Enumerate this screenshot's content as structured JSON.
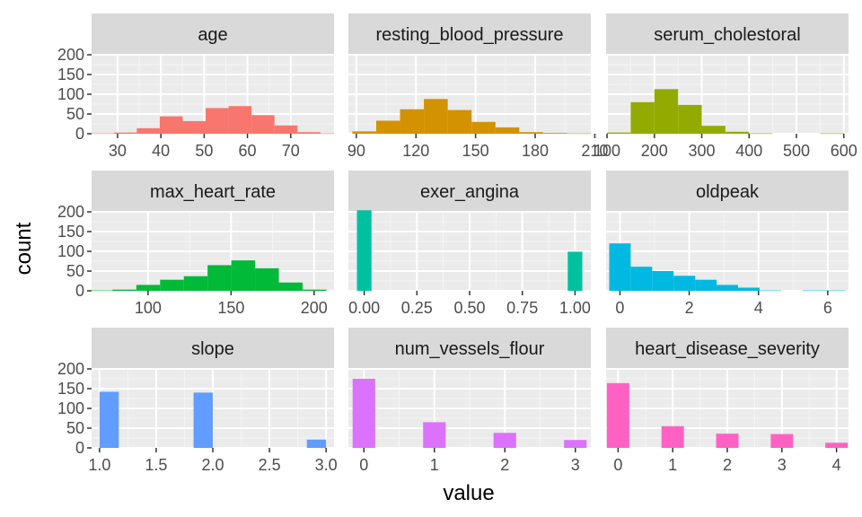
{
  "chart_data": {
    "type": "bar",
    "xlabel": "value",
    "ylabel": "count",
    "ylim": [
      0,
      200
    ],
    "y_ticks": [
      0,
      50,
      100,
      150,
      200
    ],
    "grid": true,
    "panels": [
      {
        "name": "age",
        "color": "#F8766D",
        "xlim": [
          24,
          80
        ],
        "x_ticks": [
          30,
          40,
          50,
          60,
          70
        ],
        "bar_width": 5.3,
        "bars": [
          [
            26.5,
            1
          ],
          [
            31.8,
            3
          ],
          [
            37.1,
            14
          ],
          [
            42.4,
            44
          ],
          [
            47.7,
            32
          ],
          [
            53.0,
            65
          ],
          [
            58.3,
            70
          ],
          [
            63.6,
            47
          ],
          [
            68.9,
            21
          ],
          [
            74.2,
            4
          ],
          [
            79.5,
            1
          ]
        ]
      },
      {
        "name": "resting_blood_pressure",
        "color": "#D39200",
        "xlim": [
          86,
          208
        ],
        "x_ticks": [
          90,
          120,
          150,
          180,
          210
        ],
        "bar_width": 12,
        "bars": [
          [
            94,
            6
          ],
          [
            106,
            33
          ],
          [
            118,
            62
          ],
          [
            130,
            88
          ],
          [
            142,
            60
          ],
          [
            154,
            30
          ],
          [
            166,
            16
          ],
          [
            178,
            4
          ],
          [
            190,
            2
          ],
          [
            202,
            1
          ]
        ]
      },
      {
        "name": "serum_cholestoral",
        "color": "#93AA00",
        "xlim": [
          98,
          610
        ],
        "x_ticks": [
          100,
          200,
          300,
          400,
          500,
          600
        ],
        "bar_width": 50,
        "bars": [
          [
            125,
            3
          ],
          [
            175,
            80
          ],
          [
            225,
            113
          ],
          [
            275,
            73
          ],
          [
            325,
            20
          ],
          [
            375,
            5
          ],
          [
            425,
            1
          ],
          [
            475,
            0
          ],
          [
            525,
            0
          ],
          [
            575,
            1
          ]
        ]
      },
      {
        "name": "max_heart_rate",
        "color": "#00BA38",
        "xlim": [
          66,
          212
        ],
        "x_ticks": [
          100,
          150,
          200
        ],
        "bar_width": 14.3,
        "bars": [
          [
            71.5,
            1
          ],
          [
            85.8,
            3
          ],
          [
            100.1,
            15
          ],
          [
            114.4,
            28
          ],
          [
            128.7,
            37
          ],
          [
            143.0,
            65
          ],
          [
            157.3,
            77
          ],
          [
            171.6,
            57
          ],
          [
            185.9,
            21
          ],
          [
            200.2,
            3
          ]
        ]
      },
      {
        "name": "exer_angina",
        "color": "#00C19F",
        "xlim": [
          -0.075,
          1.075
        ],
        "x_ticks": [
          0.0,
          0.25,
          0.5,
          0.75,
          1.0
        ],
        "x_tick_labels": [
          "0.00",
          "0.25",
          "0.50",
          "0.75",
          "1.00"
        ],
        "bar_width": 0.069,
        "bars": [
          [
            0,
            204
          ],
          [
            1,
            99
          ]
        ]
      },
      {
        "name": "oldpeak",
        "color": "#00B9E3",
        "xlim": [
          -0.4,
          6.6
        ],
        "x_ticks": [
          0,
          2,
          4,
          6
        ],
        "bar_width": 0.62,
        "bars": [
          [
            0,
            120
          ],
          [
            0.62,
            61
          ],
          [
            1.24,
            50
          ],
          [
            1.86,
            38
          ],
          [
            2.48,
            28
          ],
          [
            3.1,
            15
          ],
          [
            3.72,
            8
          ],
          [
            4.34,
            1
          ],
          [
            4.96,
            0
          ],
          [
            5.58,
            1
          ],
          [
            6.2,
            1
          ]
        ]
      },
      {
        "name": "slope",
        "color": "#619CFF",
        "xlim": [
          0.93,
          3.07
        ],
        "x_ticks": [
          1.0,
          1.5,
          2.0,
          2.5,
          3.0
        ],
        "x_tick_labels": [
          "1.0",
          "1.5",
          "2.0",
          "2.5",
          "3.0"
        ],
        "bar_width": 0.17,
        "bars": [
          [
            1.085,
            142
          ],
          [
            1.915,
            140
          ],
          [
            2.915,
            21
          ]
        ]
      },
      {
        "name": "num_vessels_flour",
        "color": "#DB72FB",
        "xlim": [
          -0.22,
          3.22
        ],
        "x_ticks": [
          0,
          1,
          2,
          3
        ],
        "bar_width": 0.32,
        "bars": [
          [
            0,
            175
          ],
          [
            1,
            65
          ],
          [
            2,
            38
          ],
          [
            3,
            20
          ]
        ]
      },
      {
        "name": "heart_disease_severity",
        "color": "#FF61C3",
        "xlim": [
          -0.22,
          4.22
        ],
        "x_ticks": [
          0,
          1,
          2,
          3,
          4
        ],
        "bar_width": 0.41,
        "bars": [
          [
            0,
            164
          ],
          [
            1,
            55
          ],
          [
            2,
            36
          ],
          [
            3,
            35
          ],
          [
            4,
            13
          ]
        ]
      }
    ]
  }
}
